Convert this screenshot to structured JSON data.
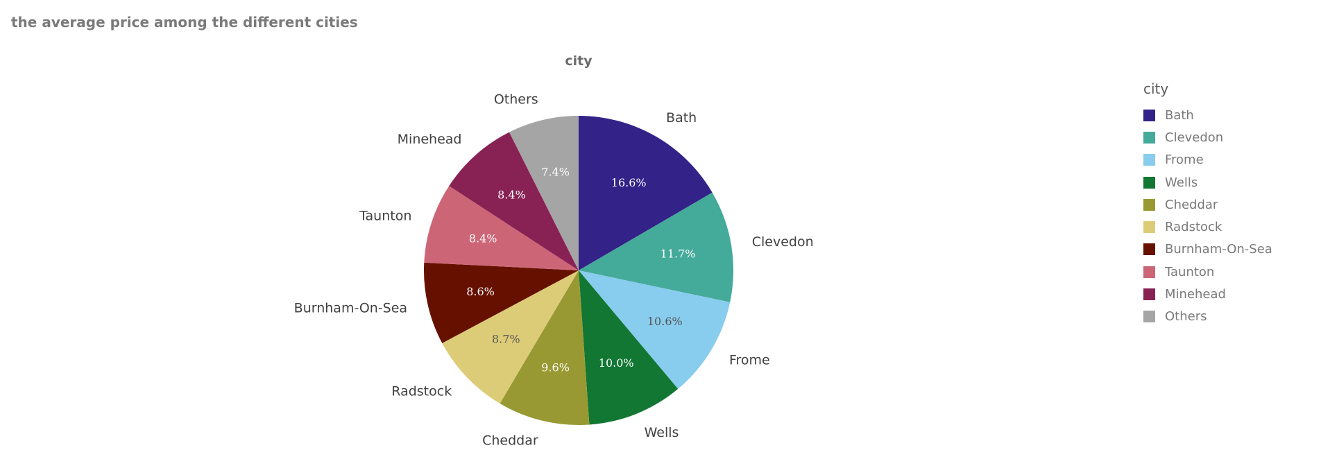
{
  "page_title": "the average price among the different cities",
  "chart_data": {
    "type": "pie",
    "title": "the average price among the different cities",
    "dimension_title": "city",
    "legend": {
      "title": "city",
      "placement": "right"
    },
    "categories": [
      "Bath",
      "Clevedon",
      "Frome",
      "Wells",
      "Cheddar",
      "Radstock",
      "Burnham-On-Sea",
      "Taunton",
      "Minehead",
      "Others"
    ],
    "values": [
      16.6,
      11.7,
      10.6,
      10.0,
      9.6,
      8.7,
      8.6,
      8.4,
      8.4,
      7.4
    ],
    "value_labels": [
      "16.6%",
      "11.7%",
      "10.6%",
      "10.0%",
      "9.6%",
      "8.7%",
      "8.6%",
      "8.4%",
      "8.4%",
      "7.4%"
    ],
    "colors": [
      "#332288",
      "#44aa99",
      "#88ccee",
      "#117733",
      "#999933",
      "#ddcc77",
      "#661100",
      "#cc6677",
      "#882255",
      "#a5a5a5"
    ],
    "label_colors": [
      "#ffffff",
      "#ffffff",
      "#555555",
      "#ffffff",
      "#ffffff",
      "#555555",
      "#ffffff",
      "#ffffff",
      "#ffffff",
      "#ffffff"
    ]
  }
}
